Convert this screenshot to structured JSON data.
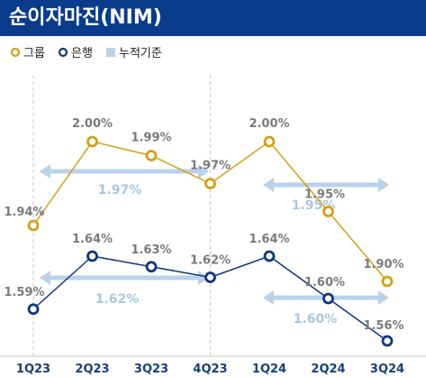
{
  "title": "순이자마진(NIM)",
  "colors": {
    "header": "#0a3c8c",
    "group": "#d4a017",
    "bank": "#10367a",
    "avg": "#b8d2ea",
    "avg_text": "#a9c6e4"
  },
  "chart_data": {
    "type": "line",
    "title": "순이자마진(NIM)",
    "categories": [
      "1Q23",
      "2Q23",
      "3Q23",
      "4Q23",
      "1Q24",
      "2Q24",
      "3Q24"
    ],
    "series": [
      {
        "name": "그룹",
        "values": [
          1.94,
          2.0,
          1.99,
          1.97,
          2.0,
          1.95,
          1.9
        ],
        "labels": [
          "1.94%",
          "2.00%",
          "1.99%",
          "1.97%",
          "2.00%",
          "1.95%",
          "1.90%"
        ]
      },
      {
        "name": "은행",
        "values": [
          1.59,
          1.64,
          1.63,
          1.62,
          1.64,
          1.6,
          1.56
        ],
        "labels": [
          "1.59%",
          "1.64%",
          "1.63%",
          "1.62%",
          "1.64%",
          "1.60%",
          "1.56%"
        ]
      }
    ],
    "averages_legend": "누적기준",
    "averages": [
      {
        "series": "그룹",
        "from": "1Q23",
        "to": "4Q23",
        "value": 1.97,
        "label": "1.97%"
      },
      {
        "series": "그룹",
        "from": "1Q24",
        "to": "3Q24",
        "value": 1.95,
        "label": "1.95%"
      },
      {
        "series": "은행",
        "from": "1Q23",
        "to": "4Q23",
        "value": 1.62,
        "label": "1.62%"
      },
      {
        "series": "은행",
        "from": "1Q24",
        "to": "3Q24",
        "value": 1.6,
        "label": "1.60%"
      }
    ],
    "legend": "top-left",
    "grid": false
  }
}
